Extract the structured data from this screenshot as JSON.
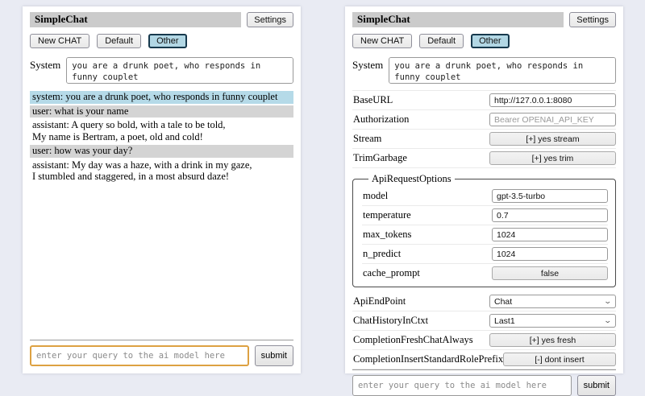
{
  "app": {
    "title": "SimpleChat",
    "settings_button": "Settings",
    "system_label": "System",
    "system_prompt": "you are a drunk poet, who responds in funny couplet",
    "query_placeholder": "enter your query to the ai model here",
    "submit_label": "submit",
    "sessions": [
      {
        "label": "New CHAT",
        "selected": false
      },
      {
        "label": "Default",
        "selected": false
      },
      {
        "label": "Other",
        "selected": true
      }
    ]
  },
  "chat_panel": {
    "messages": [
      {
        "role": "system",
        "text": "system: you are a drunk poet, who responds in funny couplet"
      },
      {
        "role": "user",
        "text": "user: what is your name"
      },
      {
        "role": "assistant",
        "text": "assistant: A query so bold, with a tale to be told,\nMy name is Bertram, a poet, old and cold!"
      },
      {
        "role": "user",
        "text": "user: how was your day?"
      },
      {
        "role": "assistant",
        "text": "assistant: My day was a haze, with a drink in my gaze,\nI stumbled and staggered, in a most absurd daze!"
      }
    ]
  },
  "settings_panel": {
    "fields_top": [
      {
        "label": "BaseURL",
        "type": "input",
        "value": "http://127.0.0.1:8080"
      },
      {
        "label": "Authorization",
        "type": "input",
        "value": "",
        "placeholder": "Bearer OPENAI_API_KEY"
      },
      {
        "label": "Stream",
        "type": "button",
        "value": "[+] yes stream"
      },
      {
        "label": "TrimGarbage",
        "type": "button",
        "value": "[+] yes trim"
      }
    ],
    "api_request_options": {
      "legend": "ApiRequestOptions",
      "fields": [
        {
          "label": "model",
          "type": "input",
          "value": "gpt-3.5-turbo"
        },
        {
          "label": "temperature",
          "type": "input",
          "value": "0.7"
        },
        {
          "label": "max_tokens",
          "type": "input",
          "value": "1024"
        },
        {
          "label": "n_predict",
          "type": "input",
          "value": "1024"
        },
        {
          "label": "cache_prompt",
          "type": "button",
          "value": "false"
        }
      ]
    },
    "fields_bottom": [
      {
        "label": "ApiEndPoint",
        "type": "select",
        "value": "Chat"
      },
      {
        "label": "ChatHistoryInCtxt",
        "type": "select",
        "value": "Last1"
      },
      {
        "label": "CompletionFreshChatAlways",
        "type": "button",
        "value": "[+] yes fresh"
      },
      {
        "label": "CompletionInsertStandardRolePrefix",
        "type": "button",
        "value": "[-] dont insert"
      }
    ]
  },
  "colors": {
    "page_background": "#e9ebf3",
    "panel_background": "#ffffff",
    "titlebar_background": "#cbcbcb",
    "system_message_background": "#b5dae8",
    "user_message_background": "#d4d4d4",
    "selected_session_background": "#b2d7e4",
    "selected_session_border": "#17394d",
    "focused_input_border": "#dda142"
  }
}
